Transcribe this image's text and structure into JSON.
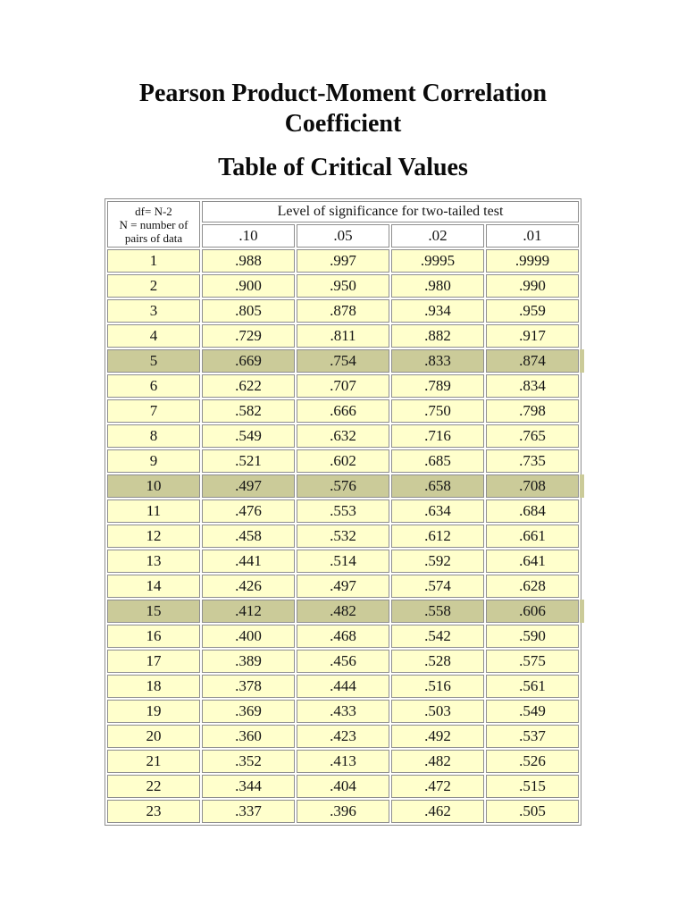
{
  "page": {
    "title_line1": "Pearson Product-Moment Correlation",
    "title_line2": "Coefficient",
    "subtitle": "Table of Critical Values"
  },
  "table": {
    "row_header_lines": [
      "df= N-2",
      "N = number of",
      "pairs of data"
    ],
    "col_group_header": "Level of significance for two-tailed test",
    "columns": [
      ".10",
      ".05",
      ".02",
      ".01"
    ],
    "highlighted_rows": [
      5,
      10,
      15
    ],
    "rows": [
      {
        "df": "1",
        "values": [
          ".988",
          ".997",
          ".9995",
          ".9999"
        ]
      },
      {
        "df": "2",
        "values": [
          ".900",
          ".950",
          ".980",
          ".990"
        ]
      },
      {
        "df": "3",
        "values": [
          ".805",
          ".878",
          ".934",
          ".959"
        ]
      },
      {
        "df": "4",
        "values": [
          ".729",
          ".811",
          ".882",
          ".917"
        ]
      },
      {
        "df": "5",
        "values": [
          ".669",
          ".754",
          ".833",
          ".874"
        ]
      },
      {
        "df": "6",
        "values": [
          ".622",
          ".707",
          ".789",
          ".834"
        ]
      },
      {
        "df": "7",
        "values": [
          ".582",
          ".666",
          ".750",
          ".798"
        ]
      },
      {
        "df": "8",
        "values": [
          ".549",
          ".632",
          ".716",
          ".765"
        ]
      },
      {
        "df": "9",
        "values": [
          ".521",
          ".602",
          ".685",
          ".735"
        ]
      },
      {
        "df": "10",
        "values": [
          ".497",
          ".576",
          ".658",
          ".708"
        ]
      },
      {
        "df": "11",
        "values": [
          ".476",
          ".553",
          ".634",
          ".684"
        ]
      },
      {
        "df": "12",
        "values": [
          ".458",
          ".532",
          ".612",
          ".661"
        ]
      },
      {
        "df": "13",
        "values": [
          ".441",
          ".514",
          ".592",
          ".641"
        ]
      },
      {
        "df": "14",
        "values": [
          ".426",
          ".497",
          ".574",
          ".628"
        ]
      },
      {
        "df": "15",
        "values": [
          ".412",
          ".482",
          ".558",
          ".606"
        ]
      },
      {
        "df": "16",
        "values": [
          ".400",
          ".468",
          ".542",
          ".590"
        ]
      },
      {
        "df": "17",
        "values": [
          ".389",
          ".456",
          ".528",
          ".575"
        ]
      },
      {
        "df": "18",
        "values": [
          ".378",
          ".444",
          ".516",
          ".561"
        ]
      },
      {
        "df": "19",
        "values": [
          ".369",
          ".433",
          ".503",
          ".549"
        ]
      },
      {
        "df": "20",
        "values": [
          ".360",
          ".423",
          ".492",
          ".537"
        ]
      },
      {
        "df": "21",
        "values": [
          ".352",
          ".413",
          ".482",
          ".526"
        ]
      },
      {
        "df": "22",
        "values": [
          ".344",
          ".404",
          ".472",
          ".515"
        ]
      },
      {
        "df": "23",
        "values": [
          ".337",
          ".396",
          ".462",
          ".505"
        ]
      }
    ],
    "colors": {
      "row_bg": "#FFFFCC",
      "highlight_bg": "#CBCB99",
      "border": "#8E8E8E"
    }
  }
}
